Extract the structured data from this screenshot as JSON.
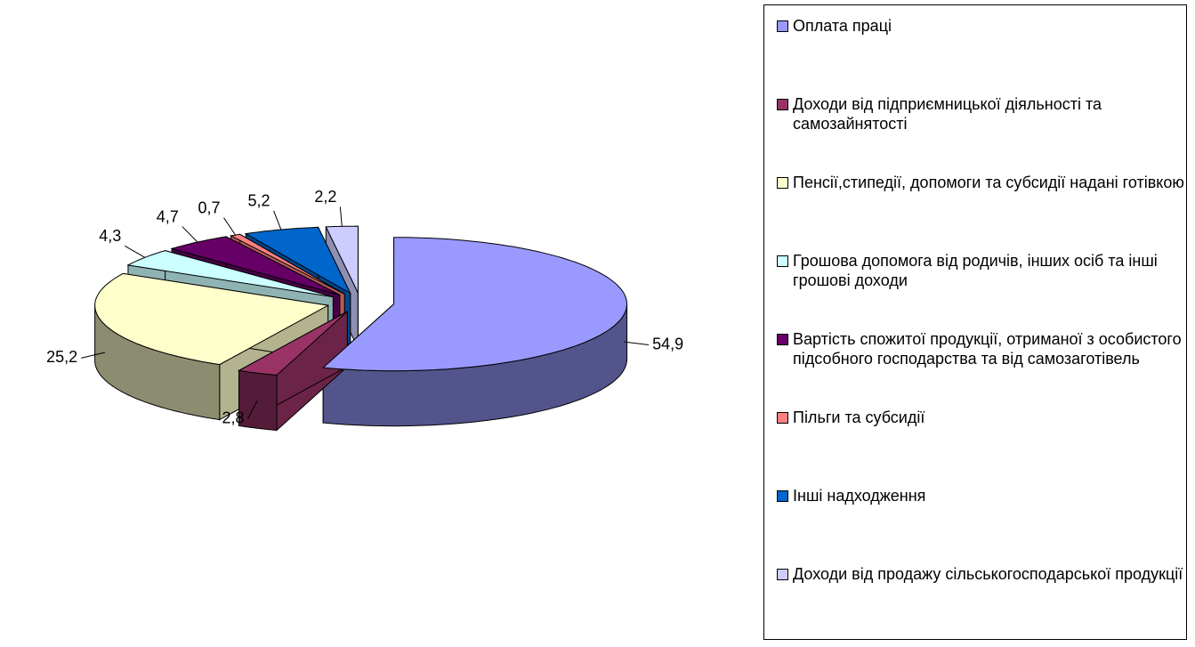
{
  "chart_data": {
    "type": "pie3d",
    "categories": [
      "Оплата праці",
      "Доходи від підприємницької діяльності та самозайнятості",
      "Пенсії,стипедії, допомоги та субсидії надані готівкою",
      "Грошова допомога від родичів, інших осіб та інші грошові доходи",
      "Вартість спожитої продукції, отриманої з особистого підсобного господарства та від самозаготівель",
      "Пільги та субсидії",
      "Інші надходження",
      "Доходи від продажу сільськогосподарської продукції"
    ],
    "values": [
      54.9,
      2.8,
      25.2,
      4.3,
      4.7,
      0.7,
      5.2,
      2.2
    ],
    "value_labels": [
      "54,9",
      "2,8",
      "25,2",
      "4,3",
      "4,7",
      "0,7",
      "5,2",
      "2,2"
    ],
    "colors": [
      "#9999ff",
      "#993366",
      "#ffffcc",
      "#ccffff",
      "#660066",
      "#ff8080",
      "#0066cc",
      "#ccccff"
    ],
    "legend": "right"
  }
}
